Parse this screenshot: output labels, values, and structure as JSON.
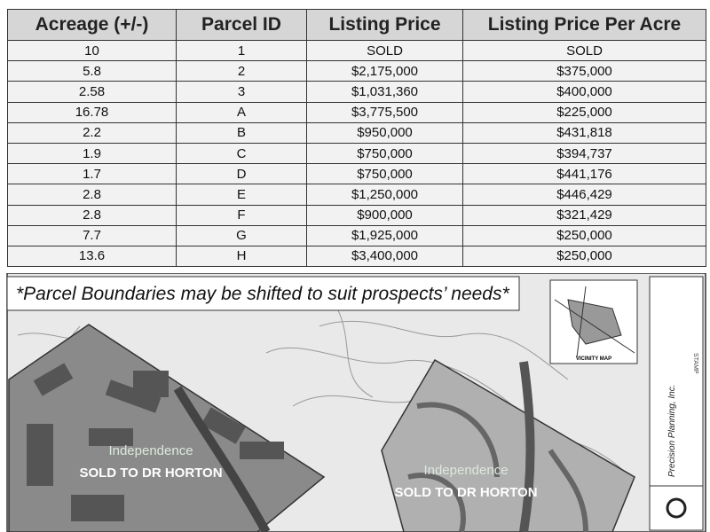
{
  "table": {
    "headers": [
      "Acreage (+/-)",
      "Parcel ID",
      "Listing Price",
      "Listing Price Per Acre"
    ],
    "rows": [
      [
        "10",
        "1",
        "SOLD",
        "SOLD"
      ],
      [
        "5.8",
        "2",
        "$2,175,000",
        "$375,000"
      ],
      [
        "2.58",
        "3",
        "$1,031,360",
        "$400,000"
      ],
      [
        "16.78",
        "A",
        "$3,775,500",
        "$225,000"
      ],
      [
        "2.2",
        "B",
        "$950,000",
        "$431,818"
      ],
      [
        "1.9",
        "C",
        "$750,000",
        "$394,737"
      ],
      [
        "1.7",
        "D",
        "$750,000",
        "$441,176"
      ],
      [
        "2.8",
        "E",
        "$1,250,000",
        "$446,429"
      ],
      [
        "2.8",
        "F",
        "$900,000",
        "$321,429"
      ],
      [
        "7.7",
        "G",
        "$1,925,000",
        "$250,000"
      ],
      [
        "13.6",
        "H",
        "$3,400,000",
        "$250,000"
      ]
    ]
  },
  "map": {
    "note": "*Parcel Boundaries may be shifted to suit prospects’ needs*",
    "parcels": [
      {
        "brand": "Independence",
        "status": "SOLD TO DR HORTON"
      },
      {
        "brand": "Independence",
        "status": "SOLD TO DR HORTON"
      }
    ],
    "vicinity_label": "VICINITY MAP",
    "firm": "Precision Planning, Inc.",
    "stamp": "STAMP"
  }
}
